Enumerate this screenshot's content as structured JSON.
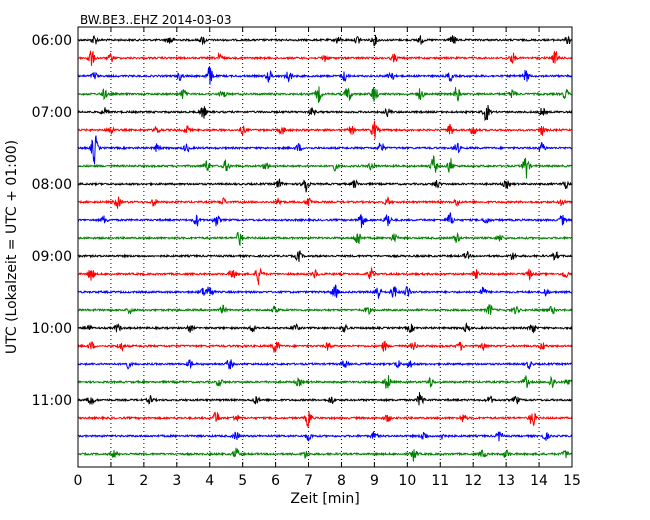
{
  "chart_data": {
    "type": "line",
    "title": "BW.BE3..EHZ 2014-03-03",
    "xlabel": "Zeit  [min]",
    "ylabel": "UTC (Lokalzeit = UTC + 01:00)",
    "xlim": [
      0,
      15
    ],
    "x_ticks": [
      "0",
      "1",
      "2",
      "3",
      "4",
      "5",
      "6",
      "7",
      "8",
      "9",
      "10",
      "11",
      "12",
      "13",
      "14",
      "15"
    ],
    "vertical_grid": "dotted, every minute",
    "trace_interval_minutes": 15,
    "trace_count": 24,
    "hour_labels": [
      {
        "trace": 0,
        "label": "06:00"
      },
      {
        "trace": 4,
        "label": "07:00"
      },
      {
        "trace": 8,
        "label": "08:00"
      },
      {
        "trace": 12,
        "label": "09:00"
      },
      {
        "trace": 16,
        "label": "10:00"
      },
      {
        "trace": 20,
        "label": "11:00"
      }
    ],
    "color_cycle": [
      "#000000",
      "#ff0000",
      "#0000ff",
      "#008000"
    ],
    "bursts": [
      [
        [
          0.5,
          5
        ],
        [
          2.8,
          5
        ],
        [
          3.8,
          4
        ],
        [
          7.9,
          4
        ],
        [
          8.5,
          4
        ],
        [
          9.0,
          5
        ],
        [
          10.4,
          4
        ],
        [
          11.4,
          5
        ],
        [
          14.9,
          5
        ]
      ],
      [
        [
          0.4,
          9
        ],
        [
          1.0,
          4
        ],
        [
          4.3,
          4
        ],
        [
          7.5,
          4
        ],
        [
          9.6,
          4
        ],
        [
          13.2,
          5
        ],
        [
          14.5,
          7
        ]
      ],
      [
        [
          0.5,
          4
        ],
        [
          3.1,
          4
        ],
        [
          4.0,
          10
        ],
        [
          5.8,
          6
        ],
        [
          6.4,
          6
        ],
        [
          8.1,
          5
        ],
        [
          9.5,
          6
        ],
        [
          11.3,
          5
        ],
        [
          13.6,
          6
        ]
      ],
      [
        [
          0.8,
          5
        ],
        [
          3.2,
          5
        ],
        [
          4.4,
          4
        ],
        [
          7.3,
          8
        ],
        [
          8.2,
          9
        ],
        [
          9.0,
          9
        ],
        [
          10.4,
          6
        ],
        [
          11.5,
          8
        ],
        [
          13.2,
          5
        ],
        [
          14.8,
          5
        ]
      ],
      [
        [
          0.8,
          4
        ],
        [
          3.8,
          7
        ],
        [
          7.1,
          4
        ],
        [
          9.4,
          4
        ],
        [
          12.4,
          9
        ],
        [
          14.1,
          4
        ]
      ],
      [
        [
          1.0,
          5
        ],
        [
          2.4,
          4
        ],
        [
          3.3,
          4
        ],
        [
          5.0,
          4
        ],
        [
          6.2,
          4
        ],
        [
          8.3,
          4
        ],
        [
          9.0,
          9
        ],
        [
          11.3,
          6
        ],
        [
          12.0,
          5
        ],
        [
          14.1,
          5
        ]
      ],
      [
        [
          0.5,
          16
        ],
        [
          2.4,
          4
        ],
        [
          3.3,
          4
        ],
        [
          6.7,
          4
        ],
        [
          9.2,
          6
        ],
        [
          11.5,
          6
        ],
        [
          14.1,
          5
        ]
      ],
      [
        [
          3.9,
          6
        ],
        [
          4.5,
          6
        ],
        [
          5.7,
          4
        ],
        [
          7.8,
          4
        ],
        [
          8.9,
          4
        ],
        [
          10.8,
          10
        ],
        [
          11.3,
          8
        ],
        [
          13.6,
          13
        ]
      ],
      [
        [
          6.1,
          5
        ],
        [
          6.9,
          11
        ],
        [
          8.4,
          4
        ],
        [
          10.9,
          4
        ],
        [
          13.0,
          4
        ],
        [
          14.8,
          4
        ]
      ],
      [
        [
          1.2,
          6
        ],
        [
          2.3,
          4
        ],
        [
          4.4,
          4
        ],
        [
          6.1,
          4
        ],
        [
          7.0,
          6
        ],
        [
          9.4,
          4
        ],
        [
          11.5,
          4
        ],
        [
          14.7,
          4
        ]
      ],
      [
        [
          0.8,
          4
        ],
        [
          3.6,
          6
        ],
        [
          4.2,
          6
        ],
        [
          8.6,
          9
        ],
        [
          9.4,
          8
        ],
        [
          11.3,
          7
        ],
        [
          12.4,
          4
        ],
        [
          14.7,
          5
        ]
      ],
      [
        [
          4.9,
          7
        ],
        [
          8.5,
          8
        ],
        [
          9.6,
          4
        ],
        [
          11.5,
          5
        ],
        [
          12.8,
          4
        ]
      ],
      [
        [
          6.7,
          6
        ],
        [
          11.8,
          4
        ],
        [
          13.2,
          4
        ],
        [
          14.5,
          4
        ]
      ],
      [
        [
          0.4,
          7
        ],
        [
          4.7,
          6
        ],
        [
          5.5,
          11
        ],
        [
          7.2,
          4
        ],
        [
          8.9,
          6
        ],
        [
          12.1,
          4
        ],
        [
          13.7,
          5
        ],
        [
          14.8,
          4
        ]
      ],
      [
        [
          3.8,
          4
        ],
        [
          4.0,
          8
        ],
        [
          7.8,
          7
        ],
        [
          9.1,
          8
        ],
        [
          9.6,
          7
        ],
        [
          10.0,
          6
        ],
        [
          12.3,
          5
        ],
        [
          14.2,
          4
        ]
      ],
      [
        [
          1.6,
          4
        ],
        [
          4.4,
          4
        ],
        [
          6.0,
          4
        ],
        [
          8.8,
          4
        ],
        [
          12.5,
          6
        ],
        [
          13.3,
          4
        ],
        [
          14.4,
          4
        ]
      ],
      [
        [
          0.3,
          4
        ],
        [
          1.2,
          4
        ],
        [
          3.4,
          4
        ],
        [
          5.3,
          4
        ],
        [
          6.6,
          4
        ],
        [
          8.1,
          4
        ],
        [
          10.1,
          4
        ],
        [
          11.8,
          4
        ],
        [
          13.8,
          6
        ]
      ],
      [
        [
          0.4,
          4
        ],
        [
          1.3,
          5
        ],
        [
          6.0,
          8
        ],
        [
          7.6,
          4
        ],
        [
          9.3,
          5
        ],
        [
          10.2,
          4
        ],
        [
          11.6,
          4
        ],
        [
          12.3,
          4
        ],
        [
          14.1,
          4
        ]
      ],
      [
        [
          1.5,
          4
        ],
        [
          3.4,
          4
        ],
        [
          4.6,
          5
        ],
        [
          8.1,
          4
        ],
        [
          9.7,
          4
        ],
        [
          10.1,
          4
        ],
        [
          13.7,
          4
        ]
      ],
      [
        [
          4.3,
          4
        ],
        [
          6.7,
          4
        ],
        [
          9.4,
          8
        ],
        [
          10.7,
          5
        ],
        [
          13.6,
          6
        ],
        [
          14.4,
          7
        ],
        [
          14.9,
          5
        ]
      ],
      [
        [
          0.4,
          6
        ],
        [
          2.2,
          4
        ],
        [
          5.4,
          4
        ],
        [
          7.7,
          4
        ],
        [
          10.4,
          8
        ],
        [
          12.5,
          4
        ],
        [
          13.3,
          4
        ]
      ],
      [
        [
          4.2,
          7
        ],
        [
          4.8,
          4
        ],
        [
          7.0,
          9
        ],
        [
          9.4,
          4
        ],
        [
          11.7,
          4
        ],
        [
          13.8,
          9
        ]
      ],
      [
        [
          4.8,
          4
        ],
        [
          7.0,
          4
        ],
        [
          9.0,
          4
        ],
        [
          10.5,
          5
        ],
        [
          11.1,
          4
        ],
        [
          12.8,
          5
        ],
        [
          14.2,
          4
        ]
      ],
      [
        [
          1.1,
          4
        ],
        [
          4.8,
          6
        ],
        [
          6.9,
          4
        ],
        [
          10.2,
          7
        ],
        [
          12.3,
          4
        ],
        [
          13.0,
          4
        ],
        [
          14.8,
          4
        ]
      ]
    ]
  }
}
